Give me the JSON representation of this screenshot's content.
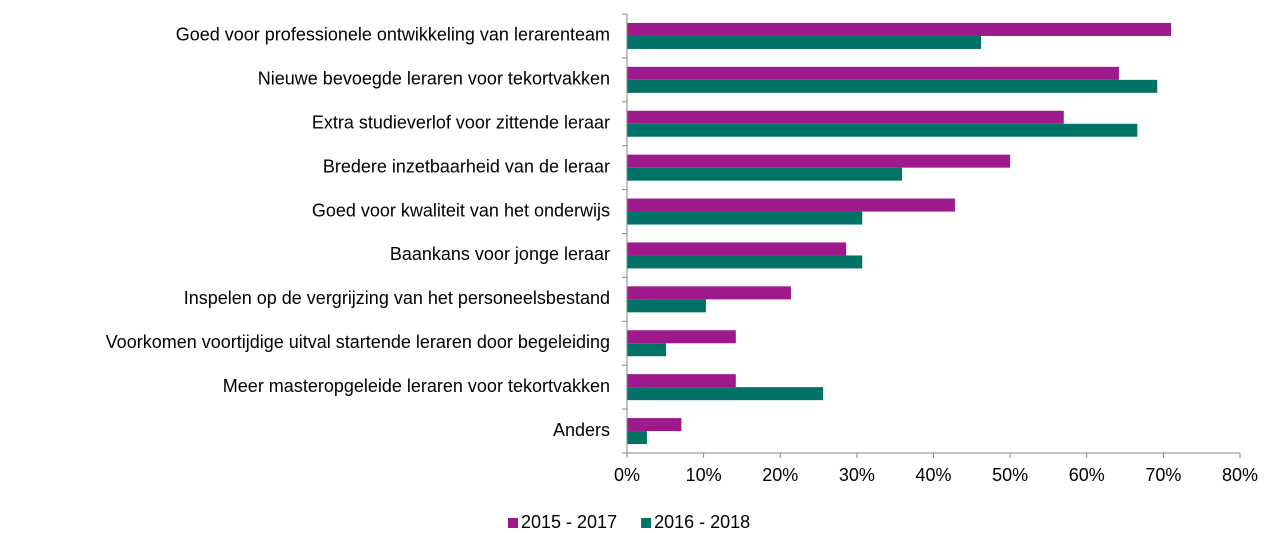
{
  "chart_data": {
    "type": "hbar",
    "categories": [
      "Goed voor professionele ontwikkeling van lerarenteam",
      "Nieuwe bevoegde leraren voor tekortvakken",
      "Extra studieverlof voor zittende leraar",
      "Bredere inzetbaarheid van de leraar",
      "Goed voor kwaliteit van het onderwijs",
      "Baankans voor jonge leraar",
      "Inspelen op de vergrijzing van het personeelsbestand",
      "Voorkomen voortijdige uitval startende leraren door begeleiding",
      "Meer masteropgeleide leraren voor tekortvakken",
      "Anders"
    ],
    "series": [
      {
        "name": "2015 - 2017",
        "color": "#9e1a8c",
        "values": [
          71.0,
          64.2,
          57.0,
          50.0,
          42.8,
          28.6,
          21.4,
          14.2,
          14.2,
          7.1
        ]
      },
      {
        "name": "2016 - 2018",
        "color": "#007366",
        "values": [
          46.2,
          69.2,
          66.6,
          35.9,
          30.7,
          30.7,
          10.3,
          5.1,
          25.6,
          2.6
        ]
      }
    ],
    "xlim": [
      0,
      80
    ],
    "xticks": [
      {
        "value": 0,
        "label": "0%"
      },
      {
        "value": 10,
        "label": "10%"
      },
      {
        "value": 20,
        "label": "20%"
      },
      {
        "value": 30,
        "label": "30%"
      },
      {
        "value": 40,
        "label": "40%"
      },
      {
        "value": 50,
        "label": "50%"
      },
      {
        "value": 60,
        "label": "60%"
      },
      {
        "value": 70,
        "label": "70%"
      },
      {
        "value": 80,
        "label": "80%"
      }
    ],
    "legend": "bottom"
  }
}
